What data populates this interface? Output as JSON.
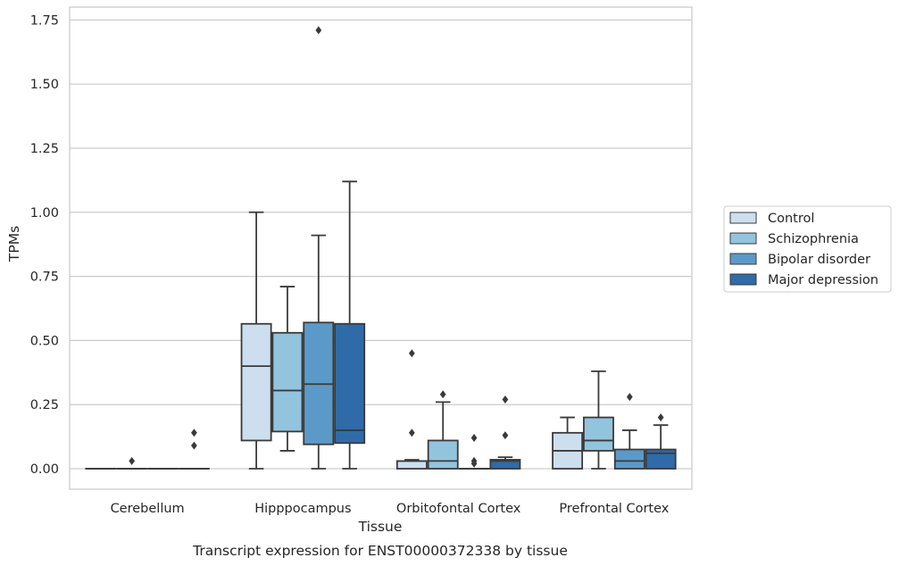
{
  "caption": "Transcript expression for ENST00000372338 by tissue",
  "chart_data": {
    "type": "box",
    "title": "",
    "xlabel": "Tissue",
    "ylabel": "TPMs",
    "ylim": [
      -0.08,
      1.8
    ],
    "yticks": [
      "0.00",
      "0.25",
      "0.50",
      "0.75",
      "1.00",
      "1.25",
      "1.50",
      "1.75"
    ],
    "grid": "horizontal",
    "legend_position": "right",
    "categories": [
      "Cerebellum",
      "Hipppocampus",
      "Orbitofontal Cortex",
      "Prefrontal Cortex"
    ],
    "series": [
      {
        "name": "Control",
        "color": "#cddfef",
        "boxes": [
          {
            "min": 0,
            "q1": 0,
            "median": 0,
            "q3": 0,
            "max": 0,
            "outliers": []
          },
          {
            "min": 0,
            "q1": 0.11,
            "median": 0.4,
            "q3": 0.565,
            "max": 1.0,
            "outliers": []
          },
          {
            "min": 0,
            "q1": 0,
            "median": 0.03,
            "q3": 0.03,
            "max": 0.035,
            "outliers": [
              0.45,
              0.14
            ]
          },
          {
            "min": 0,
            "q1": 0,
            "median": 0.07,
            "q3": 0.14,
            "max": 0.2,
            "outliers": []
          }
        ]
      },
      {
        "name": "Schizophrenia",
        "color": "#93c4de",
        "boxes": [
          {
            "min": 0,
            "q1": 0,
            "median": 0,
            "q3": 0,
            "max": 0,
            "outliers": [
              0.03
            ]
          },
          {
            "min": 0.07,
            "q1": 0.145,
            "median": 0.305,
            "q3": 0.53,
            "max": 0.71,
            "outliers": []
          },
          {
            "min": 0,
            "q1": 0,
            "median": 0.03,
            "q3": 0.11,
            "max": 0.26,
            "outliers": [
              0.29
            ]
          },
          {
            "min": 0,
            "q1": 0.07,
            "median": 0.11,
            "q3": 0.2,
            "max": 0.38,
            "outliers": []
          }
        ]
      },
      {
        "name": "Bipolar disorder",
        "color": "#5b9ac8",
        "boxes": [
          {
            "min": 0,
            "q1": 0,
            "median": 0,
            "q3": 0,
            "max": 0,
            "outliers": []
          },
          {
            "min": 0,
            "q1": 0.095,
            "median": 0.33,
            "q3": 0.57,
            "max": 0.91,
            "outliers": [
              1.71
            ]
          },
          {
            "min": 0,
            "q1": 0,
            "median": 0,
            "q3": 0,
            "max": 0,
            "outliers": [
              0.12,
              0.03,
              0.02
            ]
          },
          {
            "min": 0,
            "q1": 0,
            "median": 0.03,
            "q3": 0.075,
            "max": 0.15,
            "outliers": [
              0.28
            ]
          }
        ]
      },
      {
        "name": "Major depression",
        "color": "#2f6ba8",
        "boxes": [
          {
            "min": 0,
            "q1": 0,
            "median": 0,
            "q3": 0,
            "max": 0,
            "outliers": [
              0.14,
              0.09
            ]
          },
          {
            "min": 0,
            "q1": 0.1,
            "median": 0.15,
            "q3": 0.565,
            "max": 1.12,
            "outliers": []
          },
          {
            "min": 0,
            "q1": 0,
            "median": 0.03,
            "q3": 0.035,
            "max": 0.045,
            "outliers": [
              0.27,
              0.13
            ]
          },
          {
            "min": 0,
            "q1": 0,
            "median": 0.06,
            "q3": 0.075,
            "max": 0.17,
            "outliers": [
              0.2
            ]
          }
        ]
      }
    ]
  }
}
